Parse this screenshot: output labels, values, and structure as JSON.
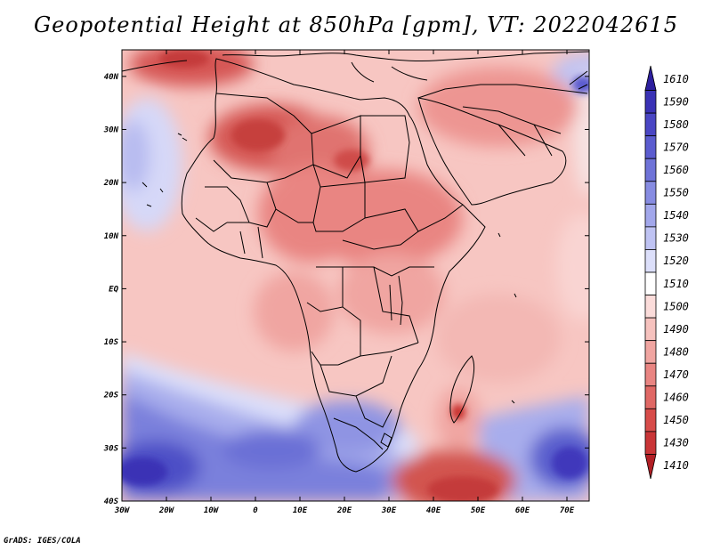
{
  "title": "Geopotential Height at 850hPa [gpm], VT: 2022042615",
  "credit": "GrADS: IGES/COLA",
  "map": {
    "variable": "Geopotential Height",
    "level": "850hPa",
    "units": "gpm",
    "valid_time": "2022042615",
    "lon_range": [
      -30,
      75
    ],
    "lat_range": [
      -40,
      45
    ],
    "lon_ticks": [
      "30W",
      "20W",
      "10W",
      "0",
      "10E",
      "20E",
      "30E",
      "40E",
      "50E",
      "60E",
      "70E"
    ],
    "lat_ticks": [
      "40N",
      "30N",
      "20N",
      "10N",
      "EQ",
      "10S",
      "20S",
      "30S",
      "40S"
    ]
  },
  "colorbar": {
    "levels": [
      "1610",
      "1590",
      "1580",
      "1570",
      "1560",
      "1550",
      "1540",
      "1530",
      "1520",
      "1510",
      "1500",
      "1490",
      "1480",
      "1470",
      "1460",
      "1450",
      "1430",
      "1410"
    ],
    "colors": [
      "#2d1f9e",
      "#3a32b5",
      "#4a46c4",
      "#5b5ccf",
      "#6f73d8",
      "#878ce2",
      "#a2a7eb",
      "#bfc3f3",
      "#dcdffa",
      "#ffffff",
      "#fbdcda",
      "#f6c2be",
      "#f0a5a1",
      "#e98582",
      "#e06865",
      "#d74c4a",
      "#c93537",
      "#b11f25"
    ]
  }
}
